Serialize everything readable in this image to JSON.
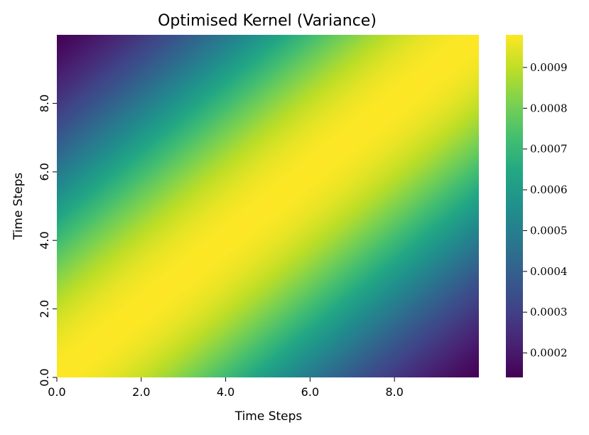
{
  "chart_data": {
    "type": "heatmap",
    "title": "Optimised Kernel (Variance)",
    "xlabel": "Time Steps",
    "ylabel": "Time Steps",
    "x_range": [
      0,
      10
    ],
    "y_range": [
      0,
      10
    ],
    "x_ticks": [
      "0.0",
      "2.0",
      "4.0",
      "6.0",
      "8.0"
    ],
    "y_ticks": [
      "0.0",
      "2.0",
      "4.0",
      "6.0",
      "8.0"
    ],
    "y_origin": "bottom",
    "colormap": "viridis",
    "colorbar": {
      "range": [
        0.00014,
        0.00098
      ],
      "ticks": [
        "0.0002",
        "0.0003",
        "0.0004",
        "0.0005",
        "0.0006",
        "0.0007",
        "0.0008",
        "0.0009"
      ]
    },
    "value_function": {
      "form": "kernel",
      "peak_on_diagonal": 0.00098,
      "min_at_corners": 0.00014,
      "length_scale": 5.0
    },
    "grid": false,
    "legend": "none"
  }
}
